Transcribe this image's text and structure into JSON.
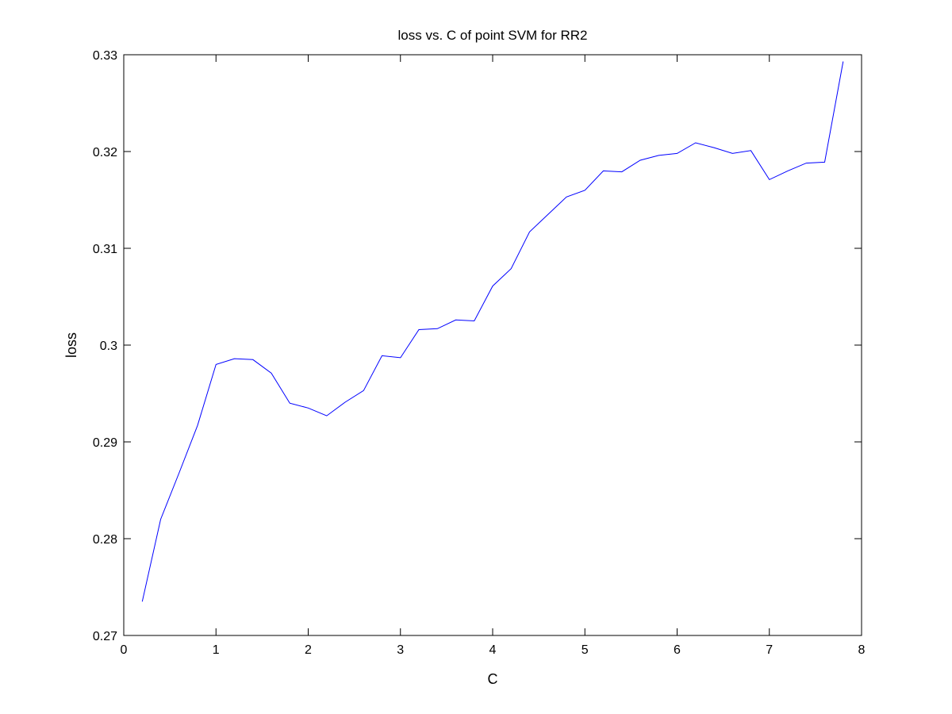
{
  "chart_data": {
    "type": "line",
    "title": "loss vs. C of point SVM for RR2",
    "xlabel": "C",
    "ylabel": "loss",
    "xlim": [
      0,
      8
    ],
    "ylim": [
      0.27,
      0.33
    ],
    "xticks": [
      0,
      1,
      2,
      3,
      4,
      5,
      6,
      7,
      8
    ],
    "yticks": [
      0.27,
      0.28,
      0.29,
      0.3,
      0.31,
      0.32,
      0.33
    ],
    "xtick_labels": [
      "0",
      "1",
      "2",
      "3",
      "4",
      "5",
      "6",
      "7",
      "8"
    ],
    "ytick_labels": [
      "0.27",
      "0.28",
      "0.29",
      "0.3",
      "0.31",
      "0.32",
      "0.33"
    ],
    "grid": false,
    "series": [
      {
        "color": "#0000ff",
        "x": [
          0.2,
          0.4,
          0.6,
          0.8,
          1.0,
          1.2,
          1.4,
          1.6,
          1.8,
          2.0,
          2.2,
          2.4,
          2.6,
          2.8,
          3.0,
          3.2,
          3.4,
          3.6,
          3.8,
          4.0,
          4.2,
          4.4,
          4.6,
          4.8,
          5.0,
          5.2,
          5.4,
          5.6,
          5.8,
          6.0,
          6.2,
          6.4,
          6.6,
          6.8,
          7.0,
          7.2,
          7.4,
          7.6,
          7.8
        ],
        "y": [
          0.2735,
          0.282,
          0.2868,
          0.2917,
          0.298,
          0.2986,
          0.2985,
          0.2971,
          0.294,
          0.2935,
          0.2927,
          0.2941,
          0.2953,
          0.2989,
          0.2987,
          0.3016,
          0.3017,
          0.3026,
          0.3025,
          0.3061,
          0.3079,
          0.3117,
          0.3135,
          0.3153,
          0.316,
          0.318,
          0.3179,
          0.3191,
          0.3196,
          0.3198,
          0.3209,
          0.3204,
          0.3198,
          0.3201,
          0.3171,
          0.318,
          0.3188,
          0.3189,
          0.3293
        ]
      }
    ]
  }
}
